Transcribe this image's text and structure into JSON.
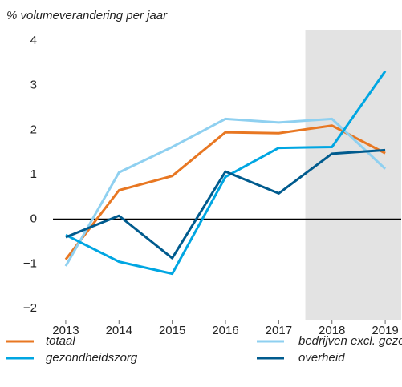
{
  "chart_data": {
    "type": "line",
    "y_axis_label": "% volumeverandering per jaar",
    "x": [
      2013,
      2014,
      2015,
      2016,
      2017,
      2018,
      2019
    ],
    "xlim": [
      2012.76,
      2019.3
    ],
    "xticks": [
      2013,
      2014,
      2015,
      2016,
      2017,
      2018,
      2019
    ],
    "ylim": [
      -2.25,
      4.25
    ],
    "yticks": [
      {
        "value": -2,
        "label": "−2"
      },
      {
        "value": -1,
        "label": "−1"
      },
      0,
      1,
      2,
      3,
      4
    ],
    "zero_line": true,
    "shaded_xrange": [
      2017.5,
      2019.3
    ],
    "shade_color": "#e3e3e3",
    "series": [
      {
        "name": "totaal",
        "color": "#e87722",
        "values": [
          -0.9,
          0.65,
          0.97,
          1.95,
          1.93,
          2.1,
          1.48
        ]
      },
      {
        "name": "bedrijven excl. gezondheidszorg",
        "color": "#8fd0f0",
        "values": [
          -1.05,
          1.05,
          1.62,
          2.25,
          2.17,
          2.25,
          1.13
        ]
      },
      {
        "name": "gezondheidszorg",
        "color": "#00a6e2",
        "values": [
          -0.35,
          -0.95,
          -1.22,
          0.95,
          1.6,
          1.62,
          3.32
        ]
      },
      {
        "name": "overheid",
        "color": "#005b8e",
        "values": [
          -0.4,
          0.08,
          -0.87,
          1.07,
          0.58,
          1.47,
          1.55
        ]
      }
    ]
  }
}
